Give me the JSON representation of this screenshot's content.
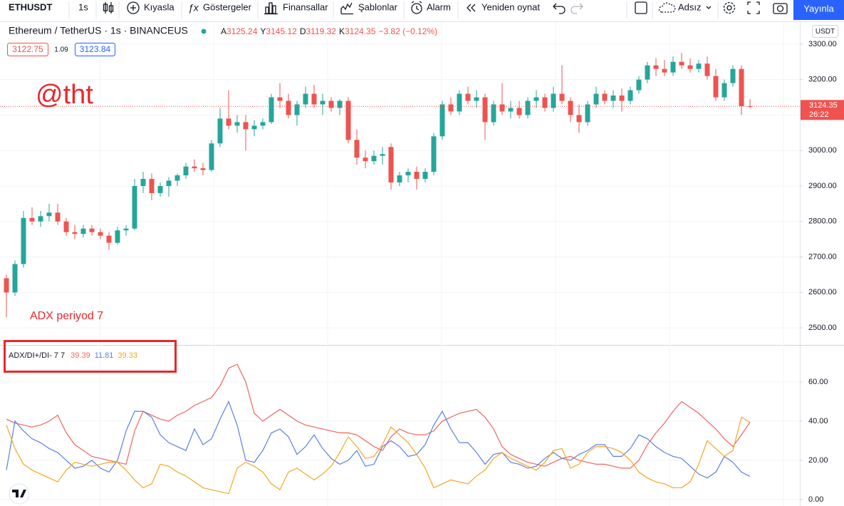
{
  "toolbar": {
    "symbol": "ETHUSDT",
    "interval": "1s",
    "items": [
      "Kıyasla",
      "Göstergeler",
      "Finansallar",
      "Şablonlar",
      "Alarm",
      "Yeniden oynat"
    ],
    "layout_name": "Adsız",
    "publish": "Yayınla"
  },
  "header": {
    "title": "Ethereum / TetherUS · 1s · BINANCEUS",
    "ohlc_labels": [
      "A",
      "Y",
      "D",
      "K"
    ],
    "change": "−3.82 (−0.12%)",
    "bid": 3122.75,
    "spread": 1.09,
    "ask": 3123.84,
    "currency": "USDT",
    "countdown": "26:22"
  },
  "annotations": {
    "watermark": "@tht",
    "note": "ADX periyod 7"
  },
  "chart_data": [
    {
      "type": "candlestick",
      "up_color": "#26a69a",
      "down_color": "#ef5350",
      "grid": true,
      "ylim": [
        2452,
        3362
      ],
      "yticks": [
        {
          "value": 2500,
          "label": "2500.00"
        },
        {
          "value": 2600,
          "label": "2600.00"
        },
        {
          "value": 2700,
          "label": "2700.00"
        },
        {
          "value": 2800,
          "label": "2800.00"
        },
        {
          "value": 2900,
          "label": "2900.00"
        },
        {
          "value": 3000,
          "label": "3000.00"
        },
        {
          "value": 3100,
          "label": "3100.00"
        },
        {
          "value": 3200,
          "label": "3200.00"
        },
        {
          "value": 3300,
          "label": "3300.00"
        }
      ],
      "open": [
        2640,
        2600,
        2680,
        2810,
        2800,
        2815,
        2825,
        2800,
        2770,
        2765,
        2780,
        2770,
        2760,
        2740,
        2775,
        2780,
        2900,
        2920,
        2880,
        2900,
        2915,
        2930,
        2955,
        2950,
        2945,
        3020,
        3090,
        3070,
        3080,
        3060,
        3070,
        3080,
        3150,
        3140,
        3100,
        3130,
        3160,
        3130,
        3140,
        3120,
        3140,
        3030,
        2980,
        2970,
        2985,
        3010,
        2910,
        2930,
        2940,
        2920,
        2940,
        3040,
        3130,
        3110,
        3160,
        3140,
        3150,
        3080,
        3130,
        3110,
        3120,
        3100,
        3140,
        3150,
        3120,
        3160,
        3140,
        3100,
        3080,
        3130,
        3160,
        3140,
        3155,
        3140,
        3170,
        3200,
        3240,
        3230,
        3220,
        3250,
        3240,
        3230,
        3245,
        3210,
        3150,
        3190,
        3230,
        3125.24
      ],
      "high": [
        2650,
        2690,
        2830,
        2840,
        2830,
        2850,
        2850,
        2810,
        2790,
        2790,
        2790,
        2780,
        2770,
        2785,
        2790,
        2920,
        2940,
        2935,
        2910,
        2925,
        2935,
        2965,
        2975,
        2965,
        3030,
        3120,
        3170,
        3100,
        3100,
        3085,
        3090,
        3160,
        3190,
        3160,
        3140,
        3180,
        3185,
        3160,
        3150,
        3145,
        3150,
        3060,
        3000,
        3000,
        3010,
        3020,
        2940,
        2950,
        2955,
        2950,
        3050,
        3140,
        3150,
        3170,
        3180,
        3170,
        3160,
        3140,
        3190,
        3140,
        3140,
        3150,
        3170,
        3160,
        3180,
        3240,
        3150,
        3130,
        3140,
        3180,
        3170,
        3170,
        3175,
        3180,
        3210,
        3250,
        3260,
        3255,
        3265,
        3275,
        3260,
        3255,
        3265,
        3230,
        3200,
        3240,
        3240,
        3145.12
      ],
      "low": [
        2530,
        2590,
        2670,
        2790,
        2785,
        2800,
        2790,
        2760,
        2750,
        2755,
        2760,
        2750,
        2720,
        2735,
        2760,
        2775,
        2880,
        2860,
        2870,
        2870,
        2900,
        2920,
        2940,
        2930,
        2940,
        3010,
        3060,
        3050,
        3000,
        3040,
        3060,
        3075,
        3120,
        3090,
        3070,
        3120,
        3120,
        3100,
        3110,
        3100,
        3020,
        2960,
        2950,
        2960,
        2960,
        2890,
        2900,
        2910,
        2890,
        2910,
        2930,
        3030,
        3100,
        3100,
        3130,
        3120,
        3030,
        3070,
        3100,
        3090,
        3090,
        3090,
        3120,
        3110,
        3110,
        3130,
        3080,
        3050,
        3070,
        3120,
        3130,
        3120,
        3110,
        3130,
        3160,
        3190,
        3210,
        3210,
        3210,
        3230,
        3220,
        3220,
        3200,
        3140,
        3140,
        3180,
        3100,
        3119.32
      ],
      "close": [
        2600,
        2680,
        2810,
        2800,
        2815,
        2825,
        2800,
        2770,
        2765,
        2780,
        2770,
        2760,
        2740,
        2775,
        2780,
        2900,
        2920,
        2880,
        2900,
        2915,
        2930,
        2955,
        2950,
        2945,
        3020,
        3090,
        3070,
        3080,
        3060,
        3070,
        3080,
        3150,
        3140,
        3100,
        3130,
        3160,
        3130,
        3140,
        3120,
        3140,
        3030,
        2980,
        2970,
        2985,
        2990,
        2910,
        2930,
        2940,
        2920,
        2940,
        3040,
        3130,
        3110,
        3160,
        3140,
        3150,
        3080,
        3130,
        3110,
        3120,
        3100,
        3140,
        3150,
        3120,
        3160,
        3140,
        3100,
        3080,
        3130,
        3160,
        3140,
        3155,
        3140,
        3170,
        3200,
        3240,
        3230,
        3220,
        3250,
        3240,
        3230,
        3245,
        3210,
        3150,
        3190,
        3230,
        3125,
        3124.35
      ]
    },
    {
      "type": "line",
      "title": "ADX/DI+/DI- 7 7",
      "grid": true,
      "ylim": [
        -3.3,
        78.5
      ],
      "yticks": [
        {
          "value": 0,
          "label": "0.00"
        },
        {
          "value": 20,
          "label": "20.00"
        },
        {
          "value": 40,
          "label": "40.00"
        },
        {
          "value": 60,
          "label": "60.00"
        }
      ],
      "series": [
        {
          "name": "ADX",
          "color": "#f0645f",
          "values": [
            41,
            39,
            38,
            37,
            38,
            40,
            43,
            34,
            28,
            25,
            22,
            21,
            20,
            19,
            18,
            35,
            45,
            43,
            41,
            40,
            43,
            45,
            48,
            50,
            52,
            58,
            67,
            69,
            60,
            44,
            40,
            43,
            46,
            43,
            40,
            38,
            37,
            36,
            35,
            34,
            34,
            33,
            30,
            27,
            25,
            32,
            36,
            34,
            33,
            33,
            35,
            40,
            42,
            44,
            45,
            46,
            42,
            36,
            27,
            23,
            21,
            19,
            18,
            17,
            19,
            21,
            22,
            20,
            19,
            18,
            18,
            17,
            16,
            16,
            20,
            28,
            34,
            39,
            45,
            50,
            47,
            44,
            40,
            36,
            31,
            27,
            33,
            39.39
          ]
        },
        {
          "name": "DI+",
          "color": "#5b7fe6",
          "values": [
            15,
            40,
            35,
            31,
            29,
            26,
            24,
            20,
            16,
            17,
            20,
            16,
            14,
            20,
            35,
            45,
            45,
            42,
            33,
            29,
            27,
            25,
            36,
            28,
            31,
            41,
            50,
            38,
            20,
            19,
            25,
            34,
            36,
            32,
            23,
            27,
            33,
            26,
            21,
            18,
            20,
            25,
            17,
            18,
            27,
            30,
            27,
            22,
            23,
            28,
            38,
            45,
            36,
            29,
            29,
            24,
            18,
            23,
            24,
            19,
            18,
            16,
            17,
            21,
            24,
            21,
            20,
            23,
            25,
            28,
            28,
            22,
            22,
            26,
            33,
            31,
            27,
            24,
            22,
            21,
            17,
            13,
            11,
            14,
            22,
            19,
            14,
            11.81
          ]
        },
        {
          "name": "DI-",
          "color": "#f5a623",
          "values": [
            38,
            26,
            18,
            15,
            13,
            11,
            9,
            15,
            19,
            18,
            17,
            18,
            19,
            19,
            15,
            10,
            6,
            8,
            18,
            17,
            14,
            12,
            9,
            6,
            5,
            4,
            3,
            16,
            19,
            17,
            14,
            8,
            5,
            14,
            16,
            13,
            10,
            13,
            17,
            24,
            32,
            27,
            21,
            22,
            28,
            37,
            33,
            29,
            23,
            16,
            6,
            8,
            10,
            9,
            8,
            12,
            15,
            21,
            24,
            21,
            19,
            17,
            15,
            19,
            25,
            26,
            16,
            18,
            24,
            27,
            27,
            26,
            24,
            20,
            14,
            11,
            9,
            8,
            6,
            6,
            9,
            18,
            30,
            26,
            22,
            25,
            42,
            39.33
          ]
        }
      ]
    }
  ]
}
